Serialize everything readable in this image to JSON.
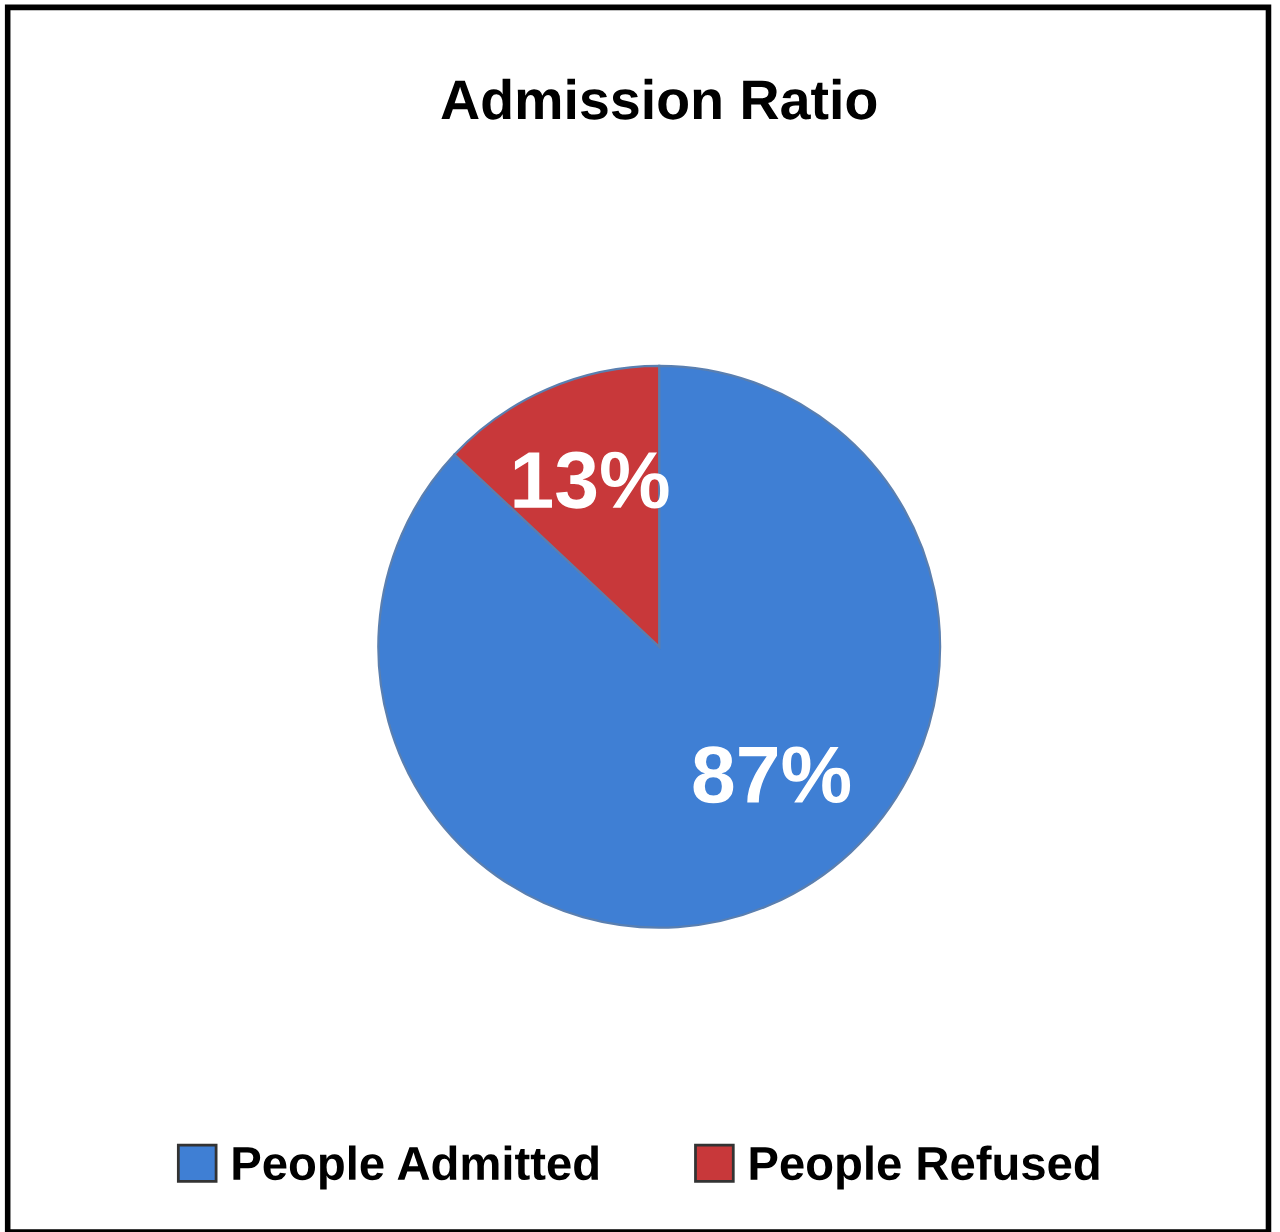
{
  "chart_data": {
    "type": "pie",
    "title": "Admission Ratio",
    "categories": [
      "People Admitted",
      "People Refused"
    ],
    "values": [
      87,
      13
    ],
    "colors": [
      "#3f7fd4",
      "#c8383a"
    ],
    "value_labels": [
      "87%",
      "13%"
    ],
    "legend": "bottom"
  }
}
